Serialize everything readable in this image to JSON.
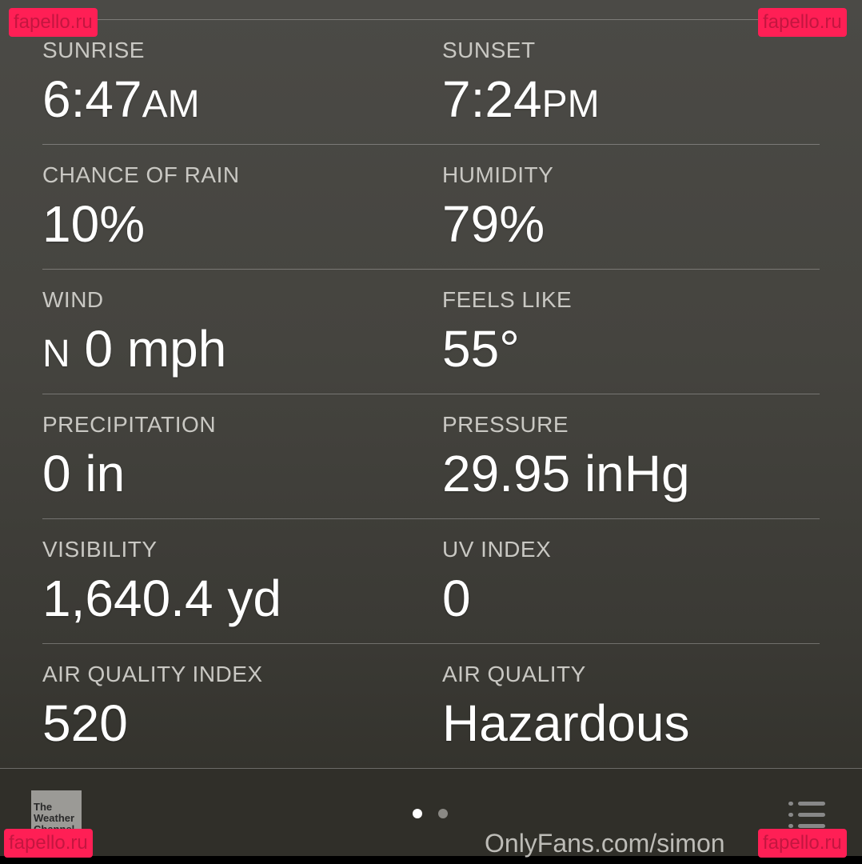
{
  "details": [
    {
      "left": {
        "label": "SUNRISE",
        "value": "6:47",
        "suffix": "AM"
      },
      "right": {
        "label": "SUNSET",
        "value": "7:24",
        "suffix": "PM"
      }
    },
    {
      "left": {
        "label": "CHANCE OF RAIN",
        "value": "10%"
      },
      "right": {
        "label": "HUMIDITY",
        "value": "79%"
      }
    },
    {
      "left": {
        "label": "WIND",
        "prefix": "N",
        "value": " 0 mph"
      },
      "right": {
        "label": "FEELS LIKE",
        "value": "55°"
      }
    },
    {
      "left": {
        "label": "PRECIPITATION",
        "value": "0 in"
      },
      "right": {
        "label": "PRESSURE",
        "value": "29.95 inHg"
      }
    },
    {
      "left": {
        "label": "VISIBILITY",
        "value": "1,640.4 yd"
      },
      "right": {
        "label": "UV INDEX",
        "value": "0"
      }
    },
    {
      "left": {
        "label": "AIR QUALITY INDEX",
        "value": "520"
      },
      "right": {
        "label": "AIR QUALITY",
        "value": "Hazardous"
      }
    }
  ],
  "footer": {
    "logo_text": "The Weather Channel",
    "page_count": 2,
    "active_page": 1,
    "menu_icon": "list-icon"
  },
  "overlay": {
    "watermark": "fapello.ru",
    "credit": "OnlyFans.com/simon"
  }
}
